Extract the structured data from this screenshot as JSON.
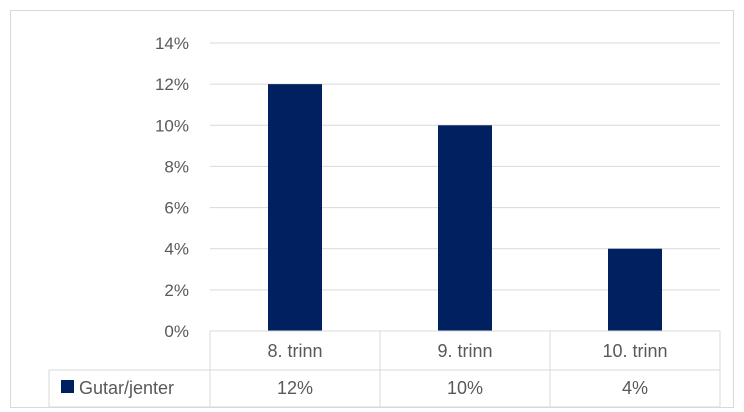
{
  "chart_data": {
    "type": "bar",
    "title": "",
    "xlabel": "",
    "ylabel": "",
    "categories": [
      "8. trinn",
      "9. trinn",
      "10. trinn"
    ],
    "series": [
      {
        "name": "Gutar/jenter",
        "values": [
          12,
          10,
          4
        ],
        "color": "#002060"
      }
    ],
    "y_ticks": [
      "0%",
      "2%",
      "4%",
      "6%",
      "8%",
      "10%",
      "12%",
      "14%"
    ],
    "ylim": [
      0,
      14
    ],
    "grid": true,
    "legend": "data-table",
    "data_table": {
      "header": [
        "8. trinn",
        "9. trinn",
        "10. trinn"
      ],
      "row_label": "Gutar/jenter",
      "row_values": [
        "12%",
        "10%",
        "4%"
      ]
    }
  }
}
